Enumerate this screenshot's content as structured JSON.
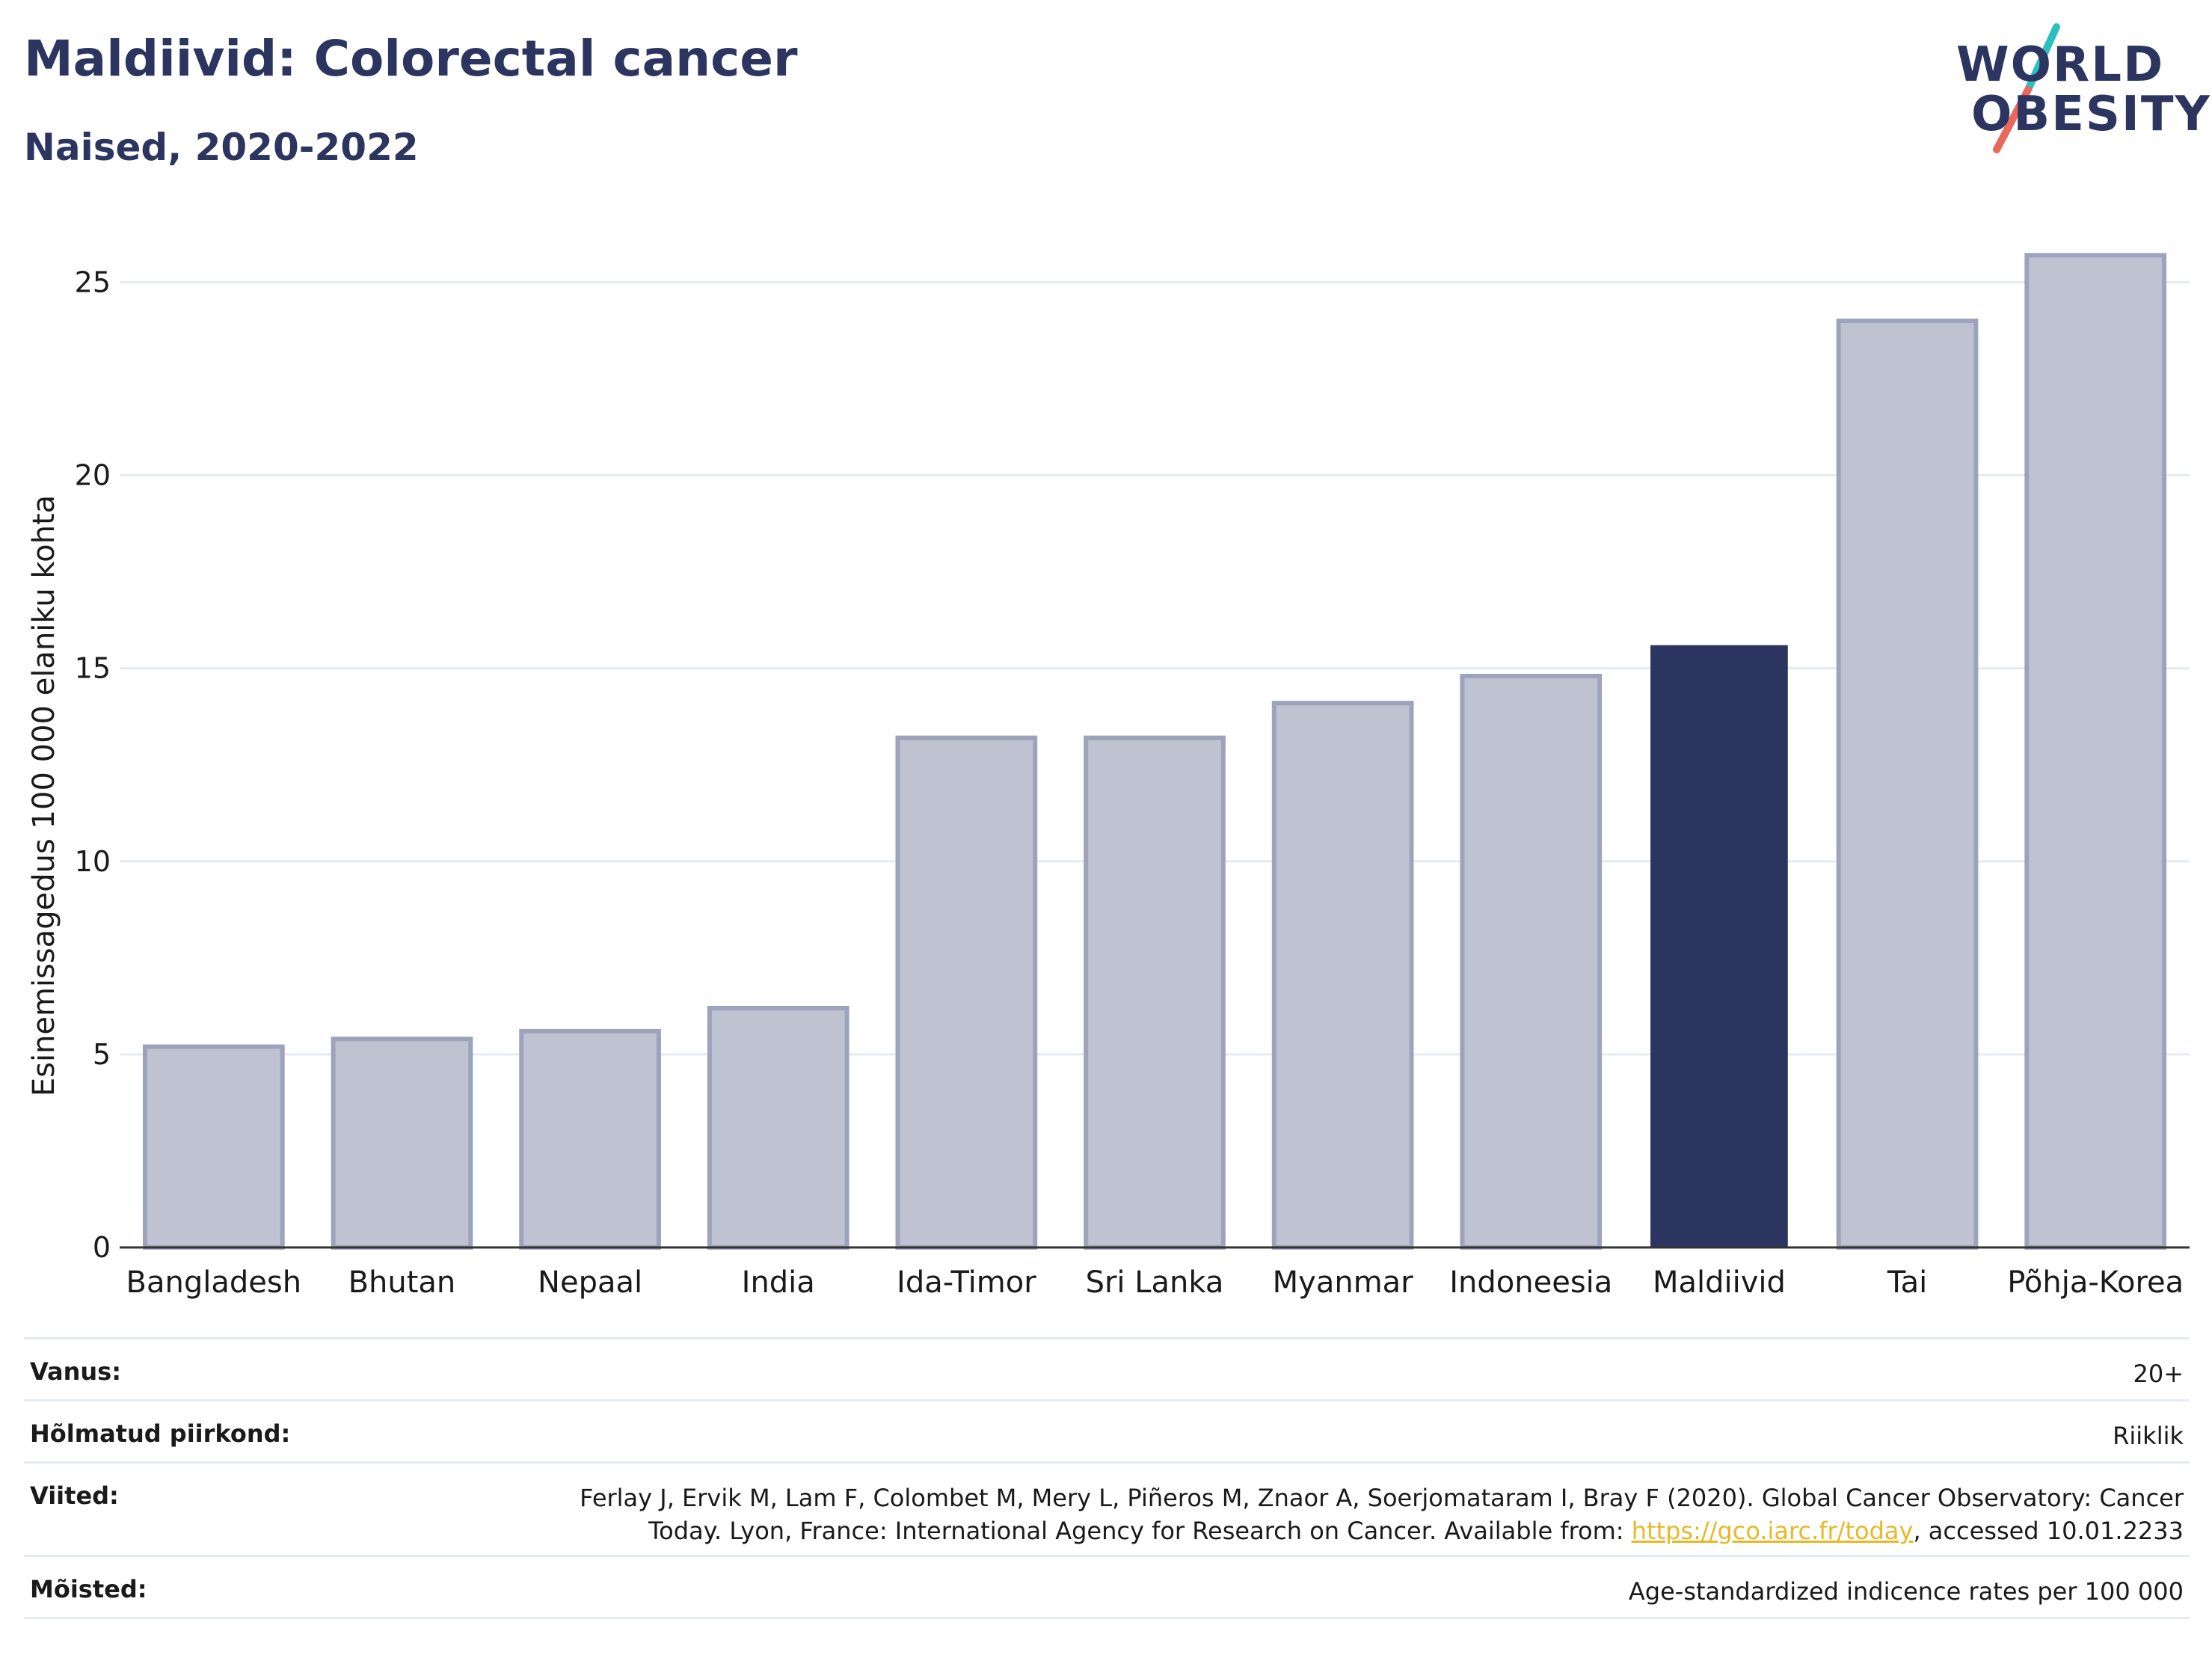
{
  "header": {
    "title": "Maldiivid: Colorectal cancer",
    "subtitle": "Naised, 2020-2022"
  },
  "logo": {
    "line1": "WORLD",
    "line2": "OBESITY",
    "slash_colors": [
      "#2bbfc0",
      "#e8685a"
    ]
  },
  "colors": {
    "highlight_bar": "#2b3560",
    "other_bar_fill": "#bfc2d0",
    "other_bar_stroke": "#9da3bb",
    "grid": "#e6ebf0",
    "text_dark": "#2b3560",
    "link": "#e8b828"
  },
  "chart_data": {
    "type": "bar",
    "title": "Maldiivid: Colorectal cancer",
    "subtitle": "Naised, 2020-2022",
    "xlabel": "",
    "ylabel": "Esinemissagedus 100 000 elaniku kohta",
    "ylim": [
      0,
      26.5
    ],
    "yticks": [
      0,
      5,
      10,
      15,
      20,
      25
    ],
    "grid": true,
    "categories": [
      "Bangladesh",
      "Bhutan",
      "Nepaal",
      "India",
      "Ida-Timor",
      "Sri Lanka",
      "Myanmar",
      "Indoneesia",
      "Maldiivid",
      "Tai",
      "Põhja-Korea"
    ],
    "values": [
      5.2,
      5.4,
      5.6,
      6.2,
      13.2,
      13.2,
      14.1,
      14.8,
      15.6,
      24.0,
      25.7
    ],
    "highlight": "Maldiivid"
  },
  "meta": {
    "age_label": "Vanus:",
    "age_value": "20+",
    "area_label": "Hõlmatud piirkond:",
    "area_value": "Riiklik",
    "ref_label": "Viited:",
    "ref_line1": "Ferlay J, Ervik M, Lam F, Colombet M, Mery L, Piñeros M, Znaor A, Soerjomataram I, Bray F (2020). Global Cancer Observatory: Cancer",
    "ref_line2_pre": "Today. Lyon, France: International Agency for Research on Cancer. Available from: ",
    "ref_link": "https://gco.iarc.fr/today",
    "ref_line2_post": ", accessed 10.01.2233",
    "def_label": "Mõisted:",
    "def_value": "Age-standardized indicence rates per 100 000"
  }
}
